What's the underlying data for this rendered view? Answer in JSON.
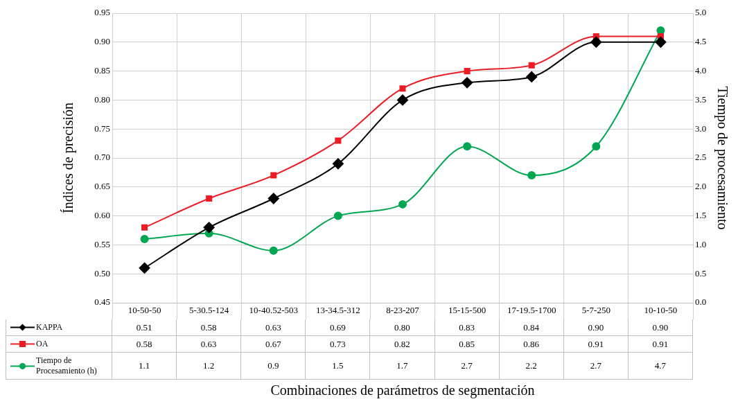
{
  "chart_data": {
    "type": "line",
    "xlabel": "Combinaciones de parámetros de segmentación",
    "ylabel": "Índices de precisión",
    "y2label": "Tiempo de procesamiento",
    "categories": [
      "10-50-50",
      "5-30.5-124",
      "10-40.52-503",
      "13-34.5-312",
      "8-23-207",
      "15-15-500",
      "17-19.5-1700",
      "5-7-250",
      "10-10-50"
    ],
    "series": [
      {
        "name": "KAPPA",
        "color": "#000000",
        "marker": "diamond",
        "values": [
          0.51,
          0.58,
          0.63,
          0.69,
          0.8,
          0.83,
          0.84,
          0.9,
          0.9
        ],
        "value_labels": [
          "0.51",
          "0.58",
          "0.63",
          "0.69",
          "0.80",
          "0.83",
          "0.84",
          "0.90",
          "0.90"
        ]
      },
      {
        "name": "OA",
        "color": "#ed1c24",
        "marker": "square",
        "values": [
          0.58,
          0.63,
          0.67,
          0.73,
          0.82,
          0.85,
          0.86,
          0.91,
          0.91
        ],
        "value_labels": [
          "0.58",
          "0.63",
          "0.67",
          "0.73",
          "0.82",
          "0.85",
          "0.86",
          "0.91",
          "0.91"
        ]
      },
      {
        "name": "Tiempo de Procesamiento (h)",
        "color": "#00a651",
        "marker": "circle",
        "axis": "y2",
        "values": [
          1.1,
          1.2,
          0.9,
          1.5,
          1.7,
          2.7,
          2.2,
          2.7,
          4.7
        ],
        "value_labels": [
          "1.1",
          "1.2",
          "0.9",
          "1.5",
          "1.7",
          "2.7",
          "2.2",
          "2.7",
          "4.7"
        ]
      }
    ],
    "ylim": [
      0.45,
      0.95
    ],
    "yticks": [
      {
        "value": 0.45,
        "label": "0.45"
      },
      {
        "value": 0.5,
        "label": "0.50"
      },
      {
        "value": 0.55,
        "label": "0.55"
      },
      {
        "value": 0.6,
        "label": "0.60"
      },
      {
        "value": 0.65,
        "label": "0.65"
      },
      {
        "value": 0.7,
        "label": "0.70"
      },
      {
        "value": 0.75,
        "label": "0.75"
      },
      {
        "value": 0.8,
        "label": "0.80"
      },
      {
        "value": 0.85,
        "label": "0.85"
      },
      {
        "value": 0.9,
        "label": "0.90"
      },
      {
        "value": 0.95,
        "label": "0.95"
      }
    ],
    "y2lim": [
      0,
      5
    ],
    "y2ticks": [
      {
        "value": 0,
        "label": "0.0"
      },
      {
        "value": 0.5,
        "label": "0.5"
      },
      {
        "value": 1,
        "label": "1.0"
      },
      {
        "value": 1.5,
        "label": "1.5"
      },
      {
        "value": 2,
        "label": "2.0"
      },
      {
        "value": 2.5,
        "label": "2.5"
      },
      {
        "value": 3,
        "label": "3.0"
      },
      {
        "value": 3.5,
        "label": "3.5"
      },
      {
        "value": 4,
        "label": "4.0"
      },
      {
        "value": 4.5,
        "label": "4.5"
      },
      {
        "value": 5,
        "label": "5.0"
      }
    ],
    "grid": true,
    "legend": "bottom",
    "line_style": "solid"
  }
}
